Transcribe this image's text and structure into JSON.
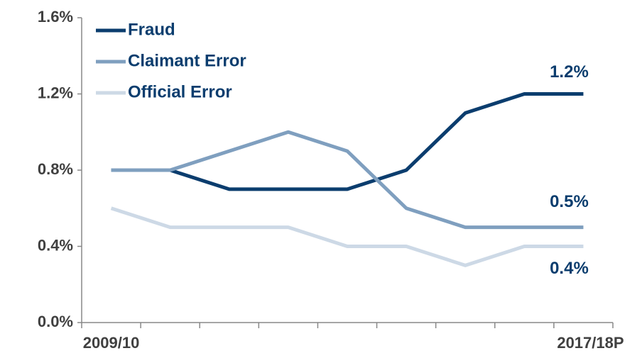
{
  "chart_data": {
    "type": "line",
    "categories": [
      "2009/10",
      null,
      null,
      null,
      null,
      null,
      null,
      null,
      "2017/18P"
    ],
    "series": [
      {
        "name": "Fraud",
        "color": "#0b3d6e",
        "values": [
          0.8,
          0.8,
          0.7,
          0.7,
          0.7,
          0.8,
          1.1,
          1.2,
          1.2
        ],
        "value_labels": [
          null,
          null,
          null,
          null,
          null,
          null,
          null,
          null,
          "1.2%"
        ]
      },
      {
        "name": "Claimant Error",
        "color": "#7f9fbf",
        "values": [
          0.8,
          0.8,
          0.9,
          1.0,
          0.9,
          0.6,
          0.5,
          0.5,
          0.5
        ],
        "value_labels": [
          null,
          null,
          null,
          null,
          null,
          null,
          null,
          null,
          "0.5%"
        ]
      },
      {
        "name": "Official Error",
        "color": "#cdd9e6",
        "values": [
          0.6,
          0.5,
          0.5,
          0.5,
          0.4,
          0.4,
          0.3,
          0.4,
          0.4
        ],
        "value_labels": [
          null,
          null,
          null,
          null,
          null,
          null,
          null,
          null,
          "0.4%"
        ]
      }
    ],
    "ylim": [
      0,
      1.6
    ],
    "yticks": [
      {
        "value": 0,
        "label": "0.0%"
      },
      {
        "value": 0.4,
        "label": "0.4%"
      },
      {
        "value": 0.8,
        "label": "0.8%"
      },
      {
        "value": 1.2,
        "label": "1.2%"
      },
      {
        "value": 1.6,
        "label": "1.6%"
      }
    ],
    "legend": "top-left",
    "grid": false
  }
}
